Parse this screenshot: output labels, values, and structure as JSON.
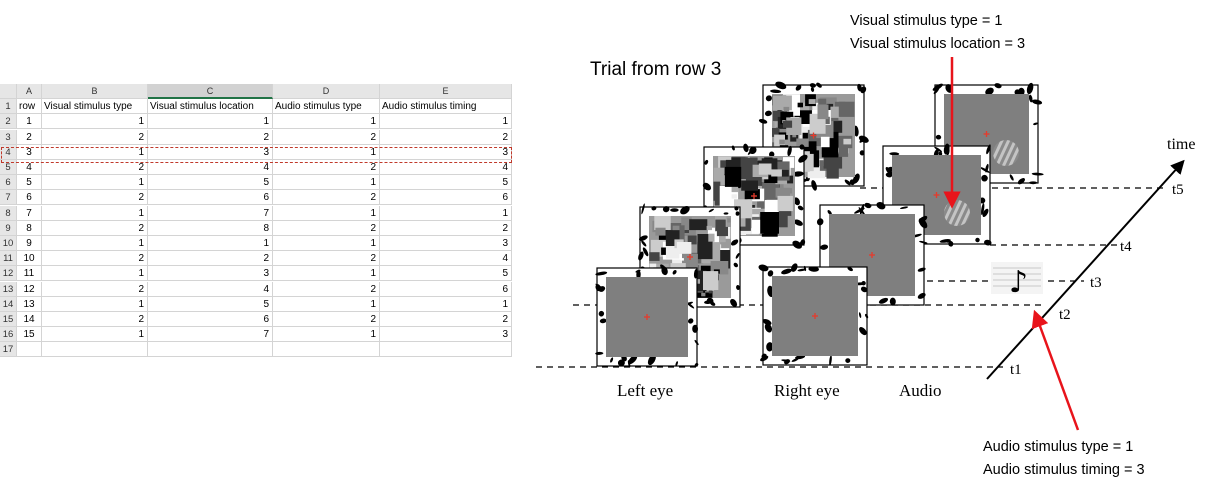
{
  "sheet": {
    "columns": [
      "A",
      "B",
      "C",
      "D",
      "E"
    ],
    "headers": [
      "row",
      "Visual stimulus type",
      "Visual stimulus location",
      "Audio stimulus type",
      "Audio stimulus timing"
    ],
    "rows": [
      [
        1,
        1,
        1,
        1,
        1
      ],
      [
        2,
        2,
        2,
        2,
        2
      ],
      [
        3,
        1,
        3,
        1,
        3
      ],
      [
        4,
        2,
        4,
        2,
        4
      ],
      [
        5,
        1,
        5,
        1,
        5
      ],
      [
        6,
        2,
        6,
        2,
        6
      ],
      [
        7,
        1,
        7,
        1,
        1
      ],
      [
        8,
        2,
        8,
        2,
        2
      ],
      [
        9,
        1,
        1,
        1,
        3
      ],
      [
        10,
        2,
        2,
        2,
        4
      ],
      [
        11,
        1,
        3,
        1,
        5
      ],
      [
        12,
        2,
        4,
        2,
        6
      ],
      [
        13,
        1,
        5,
        1,
        1
      ],
      [
        14,
        2,
        6,
        2,
        2
      ],
      [
        15,
        1,
        7,
        1,
        3
      ]
    ],
    "row_numbers": [
      "1",
      "2",
      "3",
      "4",
      "5",
      "6",
      "7",
      "8",
      "9",
      "10",
      "11",
      "12",
      "13",
      "14",
      "15",
      "16",
      "17"
    ],
    "highlighted_row": "4",
    "selected_column": "C"
  },
  "diagram": {
    "title": "Trial from row 3",
    "time_label": "time",
    "time_ticks": [
      "t1",
      "t2",
      "t3",
      "t4",
      "t5"
    ],
    "eye_labels": {
      "left": "Left eye",
      "right": "Right eye",
      "audio": "Audio"
    },
    "visual_callout": {
      "line1": "Visual stimulus type = 1",
      "line2": "Visual stimulus location = 3"
    },
    "audio_callout": {
      "line1": "Audio stimulus type = 1",
      "line2": "Audio stimulus timing = 3"
    },
    "colors": {
      "arrow": "#e8141b",
      "fixation": "#e53b2c",
      "gray": "#7f7f7f",
      "highlight": "#c0392b",
      "selected_col": "#217346"
    }
  }
}
